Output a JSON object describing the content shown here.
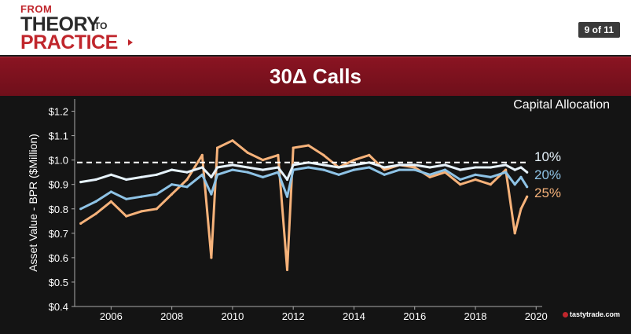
{
  "header": {
    "logo_line1": "FROM",
    "logo_line2": "THEORY",
    "logo_line2_small": "TO",
    "logo_line3": "PRACTICE",
    "page_indicator": "9 of 11"
  },
  "banner": {
    "title": "30Δ Calls"
  },
  "brand": {
    "text": "tastytrade.com"
  },
  "colors": {
    "s10": "#e6f2fb",
    "s20": "#8ec3e6",
    "s25": "#f6b27a",
    "ref": "#ffffff",
    "bg": "#141414",
    "banner": "#7a1020"
  },
  "chart_data": {
    "type": "line",
    "title": "Capital Allocation",
    "ylabel": "Asset Value - BPR ($Million)",
    "xlabel": "",
    "xlim": [
      2004.8,
      2020.2
    ],
    "ylim": [
      0.4,
      1.25
    ],
    "x_ticks": [
      2006,
      2008,
      2010,
      2012,
      2014,
      2016,
      2018,
      2020
    ],
    "y_ticks": [
      0.4,
      0.5,
      0.6,
      0.7,
      0.8,
      0.9,
      1.0,
      1.1,
      1.2
    ],
    "y_tick_labels": [
      "$0.4",
      "$0.5",
      "$0.6",
      "$0.7",
      "$0.8",
      "$0.9",
      "$1.0",
      "$1.1",
      "$1.2"
    ],
    "reference_line": {
      "y": 0.99,
      "style": "dashed"
    },
    "grid": false,
    "legend_position": "right",
    "series": [
      {
        "name": "10%",
        "color": "#e6f2fb",
        "x": [
          2005.0,
          2005.5,
          2006.0,
          2006.5,
          2007.0,
          2007.5,
          2008.0,
          2008.5,
          2009.0,
          2009.3,
          2009.5,
          2010.0,
          2010.5,
          2011.0,
          2011.5,
          2011.8,
          2012.0,
          2012.5,
          2013.0,
          2013.5,
          2014.0,
          2014.5,
          2015.0,
          2015.5,
          2016.0,
          2016.5,
          2017.0,
          2017.5,
          2018.0,
          2018.5,
          2019.0,
          2019.3,
          2019.5,
          2019.7
        ],
        "y": [
          0.91,
          0.92,
          0.94,
          0.92,
          0.93,
          0.94,
          0.96,
          0.95,
          0.97,
          0.93,
          0.97,
          0.98,
          0.97,
          0.96,
          0.97,
          0.92,
          0.98,
          0.99,
          0.98,
          0.97,
          0.98,
          0.99,
          0.97,
          0.98,
          0.98,
          0.97,
          0.98,
          0.96,
          0.97,
          0.97,
          0.98,
          0.96,
          0.97,
          0.95
        ]
      },
      {
        "name": "20%",
        "color": "#8ec3e6",
        "x": [
          2005.0,
          2005.5,
          2006.0,
          2006.5,
          2007.0,
          2007.5,
          2008.0,
          2008.5,
          2009.0,
          2009.3,
          2009.5,
          2010.0,
          2010.5,
          2011.0,
          2011.5,
          2011.8,
          2012.0,
          2012.5,
          2013.0,
          2013.5,
          2014.0,
          2014.5,
          2015.0,
          2015.5,
          2016.0,
          2016.5,
          2017.0,
          2017.5,
          2018.0,
          2018.5,
          2019.0,
          2019.3,
          2019.5,
          2019.7
        ],
        "y": [
          0.8,
          0.83,
          0.87,
          0.84,
          0.85,
          0.86,
          0.9,
          0.89,
          0.94,
          0.86,
          0.94,
          0.96,
          0.95,
          0.93,
          0.95,
          0.85,
          0.96,
          0.97,
          0.96,
          0.94,
          0.96,
          0.97,
          0.94,
          0.96,
          0.96,
          0.94,
          0.96,
          0.92,
          0.94,
          0.93,
          0.95,
          0.9,
          0.93,
          0.89
        ]
      },
      {
        "name": "25%",
        "color": "#f6b27a",
        "x": [
          2005.0,
          2005.5,
          2006.0,
          2006.5,
          2007.0,
          2007.5,
          2008.0,
          2008.5,
          2009.0,
          2009.3,
          2009.5,
          2010.0,
          2010.5,
          2011.0,
          2011.5,
          2011.8,
          2012.0,
          2012.5,
          2013.0,
          2013.5,
          2014.0,
          2014.5,
          2015.0,
          2015.5,
          2016.0,
          2016.5,
          2017.0,
          2017.5,
          2018.0,
          2018.5,
          2019.0,
          2019.3,
          2019.5,
          2019.7
        ],
        "y": [
          0.74,
          0.78,
          0.83,
          0.77,
          0.79,
          0.8,
          0.86,
          0.92,
          1.02,
          0.6,
          1.05,
          1.08,
          1.03,
          1.0,
          1.02,
          0.55,
          1.05,
          1.06,
          1.02,
          0.97,
          1.0,
          1.02,
          0.96,
          0.98,
          0.97,
          0.93,
          0.95,
          0.9,
          0.92,
          0.9,
          0.96,
          0.7,
          0.8,
          0.85
        ]
      }
    ]
  }
}
